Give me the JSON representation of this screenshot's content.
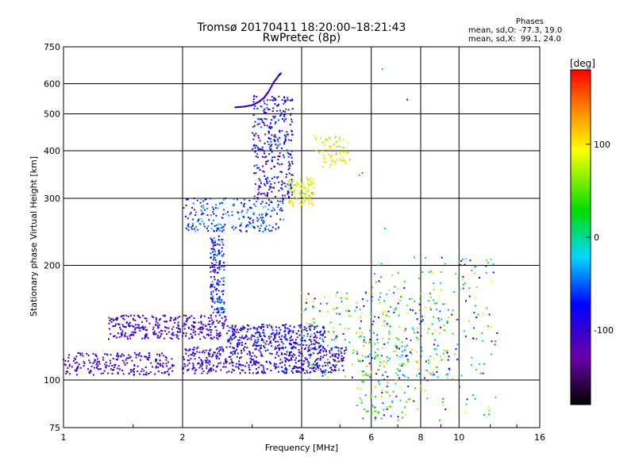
{
  "header": {
    "title": "Tromsø 20170411 18:20:00–18:21:43",
    "subtitle": "RwPretec (8p)"
  },
  "phase_stats": {
    "heading": "Phases",
    "line_o": "mean, sd,O: -77.3, 19.0",
    "line_x": "mean, sd,X:  99.1, 24.0"
  },
  "colorbar": {
    "label": "[deg]",
    "ticks": [
      "100",
      "0",
      "-100"
    ],
    "tick_values": [
      100,
      0,
      -100
    ],
    "range": [
      -180,
      180
    ]
  },
  "chart_data": {
    "type": "scatter",
    "xlabel": "Frequency [MHz]",
    "ylabel": "Stationary phase Virtual Height [km]",
    "x_scale": "log",
    "y_scale": "log",
    "xlim": [
      1,
      16
    ],
    "ylim": [
      75,
      750
    ],
    "x_ticks": [
      1,
      2,
      4,
      6,
      8,
      10,
      16
    ],
    "x_tick_labels": [
      "1",
      "2",
      "4",
      "6",
      "8",
      "10",
      "16"
    ],
    "y_ticks": [
      75,
      100,
      200,
      300,
      400,
      500,
      600,
      750
    ],
    "y_tick_labels": [
      "75",
      "100",
      "200",
      "300",
      "400",
      "500",
      "600",
      "750"
    ],
    "grid": true,
    "clusters": [
      {
        "x_range": [
          1.0,
          1.9
        ],
        "y_range": [
          103,
          118
        ],
        "phase_range": [
          -130,
          -90
        ],
        "count": 220
      },
      {
        "x_range": [
          1.3,
          2.6
        ],
        "y_range": [
          128,
          148
        ],
        "phase_range": [
          -130,
          -80
        ],
        "count": 320
      },
      {
        "x_range": [
          2.0,
          5.2
        ],
        "y_range": [
          104,
          122
        ],
        "phase_range": [
          -125,
          -60
        ],
        "count": 520
      },
      {
        "x_range": [
          2.6,
          4.6
        ],
        "y_range": [
          122,
          140
        ],
        "phase_range": [
          -120,
          -50
        ],
        "count": 300
      },
      {
        "x_range": [
          2.35,
          2.55
        ],
        "y_range": [
          150,
          240
        ],
        "phase_range": [
          -110,
          -30
        ],
        "count": 160
      },
      {
        "x_range": [
          2.0,
          3.6
        ],
        "y_range": [
          245,
          300
        ],
        "phase_range": [
          -100,
          -20
        ],
        "count": 230
      },
      {
        "x_range": [
          3.0,
          3.8
        ],
        "y_range": [
          300,
          560
        ],
        "phase_range": [
          -120,
          -50
        ],
        "count": 320
      },
      {
        "x_range": [
          3.7,
          4.3
        ],
        "y_range": [
          285,
          340
        ],
        "phase_range": [
          60,
          120
        ],
        "count": 90
      },
      {
        "x_range": [
          4.3,
          5.3
        ],
        "y_range": [
          360,
          440
        ],
        "phase_range": [
          60,
          120
        ],
        "count": 70
      },
      {
        "x_range": [
          4.0,
          9.5
        ],
        "y_range": [
          100,
          170
        ],
        "phase_range": [
          -110,
          130
        ],
        "count": 260
      },
      {
        "x_range": [
          6.0,
          12.5
        ],
        "y_range": [
          78,
          210
        ],
        "phase_range": [
          -110,
          120
        ],
        "count": 220
      },
      {
        "x_range": [
          5.5,
          7.5
        ],
        "y_range": [
          78,
          130
        ],
        "phase_range": [
          -100,
          100
        ],
        "count": 90
      }
    ],
    "arc_trace": [
      {
        "x": 2.72,
        "y": 520
      },
      {
        "x": 2.85,
        "y": 522
      },
      {
        "x": 3.0,
        "y": 527
      },
      {
        "x": 3.12,
        "y": 538
      },
      {
        "x": 3.22,
        "y": 552
      },
      {
        "x": 3.3,
        "y": 572
      },
      {
        "x": 3.4,
        "y": 605
      },
      {
        "x": 3.5,
        "y": 630
      },
      {
        "x": 3.55,
        "y": 640
      }
    ],
    "arc_phase": -100,
    "highlight_points": [
      {
        "x": 5.6,
        "y": 345,
        "phase": 150
      },
      {
        "x": 5.7,
        "y": 350,
        "phase": 160
      },
      {
        "x": 4.25,
        "y": 310,
        "phase": 150
      },
      {
        "x": 6.4,
        "y": 655,
        "phase": 20
      },
      {
        "x": 7.4,
        "y": 545,
        "phase": -110
      },
      {
        "x": 6.5,
        "y": 250,
        "phase": 0
      }
    ]
  }
}
